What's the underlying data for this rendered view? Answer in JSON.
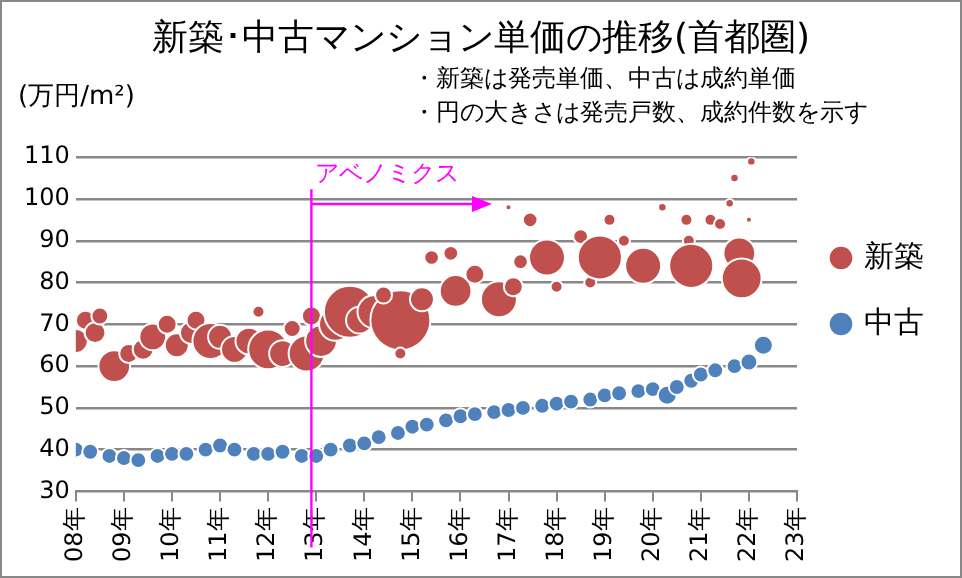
{
  "chart_data": {
    "type": "bubble",
    "title": "新築･中古マンション単価の推移(首都圏)",
    "ylabel": "(万円/m²)",
    "annotations": [
      "・新築は発売単価、中古は成約単価",
      "・円の大きさは発売戸数、成約件数を示す"
    ],
    "xlim": [
      8,
      23
    ],
    "xticks": [
      {
        "value": 8,
        "label": "08年"
      },
      {
        "value": 9,
        "label": "09年"
      },
      {
        "value": 10,
        "label": "10年"
      },
      {
        "value": 11,
        "label": "11年"
      },
      {
        "value": 12,
        "label": "12年"
      },
      {
        "value": 13,
        "label": "13年"
      },
      {
        "value": 14,
        "label": "14年"
      },
      {
        "value": 15,
        "label": "15年"
      },
      {
        "value": 16,
        "label": "16年"
      },
      {
        "value": 17,
        "label": "17年"
      },
      {
        "value": 18,
        "label": "18年"
      },
      {
        "value": 19,
        "label": "19年"
      },
      {
        "value": 20,
        "label": "20年"
      },
      {
        "value": 21,
        "label": "21年"
      },
      {
        "value": 22,
        "label": "22年"
      },
      {
        "value": 23,
        "label": "23年"
      }
    ],
    "ylim": [
      30,
      110
    ],
    "yticks": [
      30,
      40,
      50,
      60,
      70,
      80,
      90,
      100,
      110
    ],
    "grid": "y",
    "legend": "right",
    "ref_lines": [
      {
        "axis": "x",
        "value": 12.9,
        "label": "アベノミクス",
        "color": "#ff00ff"
      }
    ],
    "series": [
      {
        "name": "新築",
        "color": "#c0504d",
        "x": [
          8.0,
          8.2,
          8.4,
          8.5,
          8.8,
          9.1,
          9.4,
          9.6,
          9.9,
          10.1,
          10.4,
          10.5,
          10.8,
          11.0,
          11.3,
          11.6,
          11.8,
          12.0,
          12.3,
          12.5,
          12.8,
          12.9,
          13.1,
          13.4,
          13.7,
          13.9,
          14.2,
          14.75,
          14.75,
          14.4,
          15.2,
          15.4,
          15.8,
          15.9,
          16.3,
          16.8,
          17.0,
          17.1,
          17.25,
          17.45,
          17.8,
          18.0,
          18.5,
          18.7,
          18.9,
          19.1,
          19.4,
          19.8,
          20.2,
          20.7,
          20.75,
          20.8,
          21.2,
          21.4,
          21.6,
          21.7,
          21.8,
          21.85,
          22.0,
          22.05
        ],
        "values": [
          66,
          71,
          68,
          72,
          60,
          63,
          64,
          67,
          70,
          65,
          68,
          71,
          66,
          67,
          64,
          66,
          73,
          64,
          63,
          69,
          63,
          72,
          66,
          70,
          73,
          71,
          73,
          71,
          63,
          77,
          76,
          86,
          87,
          78,
          82,
          76,
          98,
          79,
          85,
          95,
          86,
          79,
          91,
          80,
          86,
          95,
          90,
          84,
          98,
          95,
          90,
          84,
          95,
          94,
          99,
          105,
          87,
          81,
          95,
          109
        ],
        "sizes": [
          0.16,
          0.1,
          0.12,
          0.08,
          0.28,
          0.1,
          0.12,
          0.2,
          0.1,
          0.16,
          0.14,
          0.1,
          0.36,
          0.16,
          0.2,
          0.2,
          0.04,
          0.44,
          0.2,
          0.08,
          0.36,
          0.1,
          0.28,
          0.3,
          0.75,
          0.2,
          0.3,
          1,
          0.04,
          0.08,
          0.16,
          0.06,
          0.06,
          0.28,
          0.1,
          0.36,
          0.01,
          0.1,
          0.06,
          0.06,
          0.36,
          0.04,
          0.06,
          0.04,
          0.54,
          0.04,
          0.04,
          0.36,
          0.02,
          0.04,
          0.04,
          0.54,
          0.04,
          0.04,
          0.02,
          0.02,
          0.28,
          0.44,
          0.01,
          0.02
        ]
      },
      {
        "name": "中古",
        "color": "#4f81bd",
        "x": [
          8.0,
          8.3,
          8.7,
          9.0,
          9.3,
          9.7,
          10.0,
          10.3,
          10.7,
          11.0,
          11.3,
          11.7,
          12.0,
          12.3,
          12.7,
          13.0,
          13.3,
          13.7,
          14.0,
          14.3,
          14.7,
          15.0,
          15.3,
          15.7,
          16.0,
          16.3,
          16.7,
          17.0,
          17.3,
          17.7,
          18.0,
          18.3,
          18.7,
          19.0,
          19.3,
          19.7,
          20.0,
          20.3,
          20.5,
          20.8,
          21.0,
          21.3,
          21.7,
          22.0,
          22.3
        ],
        "values": [
          40,
          39.5,
          38.5,
          38,
          37.5,
          38.5,
          39,
          39,
          40,
          41,
          40,
          39,
          39,
          39.5,
          38.5,
          38.5,
          40,
          41,
          41.5,
          43,
          44,
          45.5,
          46,
          47,
          48,
          48.5,
          49,
          49.5,
          50,
          50.5,
          51,
          51.5,
          52,
          53,
          53.5,
          54,
          54.5,
          53,
          55,
          56.5,
          58,
          59,
          60,
          61,
          65
        ],
        "sizes": [
          0.07,
          0.07,
          0.07,
          0.07,
          0.07,
          0.07,
          0.07,
          0.07,
          0.07,
          0.07,
          0.07,
          0.07,
          0.07,
          0.07,
          0.07,
          0.07,
          0.07,
          0.07,
          0.07,
          0.07,
          0.07,
          0.07,
          0.07,
          0.07,
          0.07,
          0.07,
          0.07,
          0.07,
          0.07,
          0.07,
          0.07,
          0.07,
          0.07,
          0.07,
          0.07,
          0.07,
          0.07,
          0.1,
          0.07,
          0.07,
          0.07,
          0.07,
          0.07,
          0.08,
          0.1
        ]
      }
    ]
  }
}
